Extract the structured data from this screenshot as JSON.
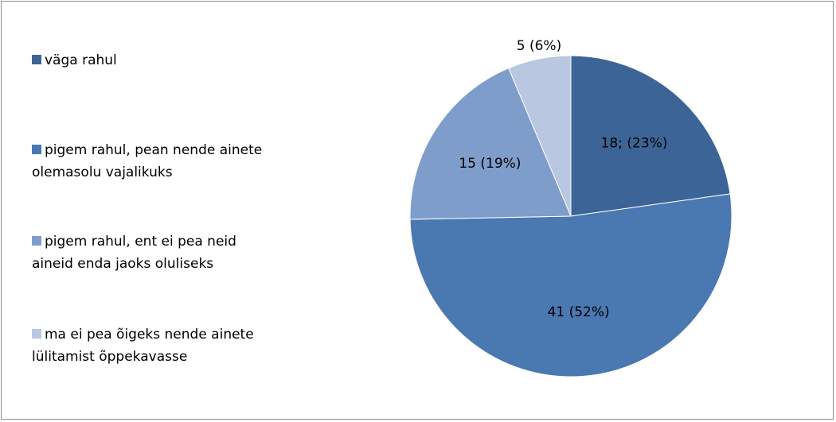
{
  "chart_data": {
    "type": "pie",
    "categories": [
      "väga rahul",
      "pigem rahul, pean nende ainete olemasolu vajalikuks",
      "pigem rahul, ent ei pea neid aineid enda jaoks oluliseks",
      "ma ei pea õigeks nende ainete lülitamist õppekavasse"
    ],
    "values": [
      18,
      41,
      15,
      5
    ],
    "value_labels": [
      "18; (23%)",
      "41 (52%)",
      "15 (19%)",
      "5 (6%)"
    ],
    "colors": [
      "#3c6496",
      "#4a78b1",
      "#7f9dca",
      "#b9c7e1"
    ],
    "legend": "left"
  }
}
